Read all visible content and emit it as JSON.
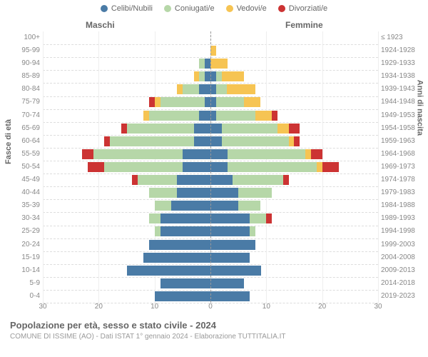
{
  "chart": {
    "type": "population-pyramid",
    "title": "Popolazione per età, sesso e stato civile - 2024",
    "subtitle": "COMUNE DI ISSIME (AO) - Dati ISTAT 1° gennaio 2024 - Elaborazione TUTTITALIA.IT",
    "header_male": "Maschi",
    "header_female": "Femmine",
    "axis_left_title": "Fasce di età",
    "axis_right_title": "Anni di nascita",
    "xlim": 30,
    "x_ticks": [
      30,
      20,
      10,
      0,
      10,
      20,
      30
    ],
    "legend": [
      {
        "label": "Celibi/Nubili",
        "color": "#4a7ba6"
      },
      {
        "label": "Coniugati/e",
        "color": "#b6d7a8"
      },
      {
        "label": "Vedovi/e",
        "color": "#f6c453"
      },
      {
        "label": "Divorziati/e",
        "color": "#cc3333"
      }
    ],
    "colors": {
      "single": "#4a7ba6",
      "married": "#b6d7a8",
      "widowed": "#f6c453",
      "divorced": "#cc3333",
      "grid": "#dddddd",
      "background": "#ffffff",
      "text": "#666666"
    },
    "rows": [
      {
        "age": "100+",
        "birth": "≤ 1923",
        "m": {
          "s": 0,
          "m": 0,
          "w": 0,
          "d": 0
        },
        "f": {
          "s": 0,
          "m": 0,
          "w": 0,
          "d": 0
        }
      },
      {
        "age": "95-99",
        "birth": "1924-1928",
        "m": {
          "s": 0,
          "m": 0,
          "w": 0,
          "d": 0
        },
        "f": {
          "s": 0,
          "m": 0,
          "w": 1,
          "d": 0
        }
      },
      {
        "age": "90-94",
        "birth": "1929-1933",
        "m": {
          "s": 1,
          "m": 1,
          "w": 0,
          "d": 0
        },
        "f": {
          "s": 0,
          "m": 0,
          "w": 3,
          "d": 0
        }
      },
      {
        "age": "85-89",
        "birth": "1934-1938",
        "m": {
          "s": 1,
          "m": 1,
          "w": 1,
          "d": 0
        },
        "f": {
          "s": 1,
          "m": 1,
          "w": 4,
          "d": 0
        }
      },
      {
        "age": "80-84",
        "birth": "1939-1943",
        "m": {
          "s": 2,
          "m": 3,
          "w": 1,
          "d": 0
        },
        "f": {
          "s": 1,
          "m": 2,
          "w": 5,
          "d": 0
        }
      },
      {
        "age": "75-79",
        "birth": "1944-1948",
        "m": {
          "s": 1,
          "m": 8,
          "w": 1,
          "d": 1
        },
        "f": {
          "s": 1,
          "m": 5,
          "w": 3,
          "d": 0
        }
      },
      {
        "age": "70-74",
        "birth": "1949-1953",
        "m": {
          "s": 2,
          "m": 9,
          "w": 1,
          "d": 0
        },
        "f": {
          "s": 1,
          "m": 7,
          "w": 3,
          "d": 1
        }
      },
      {
        "age": "65-69",
        "birth": "1954-1958",
        "m": {
          "s": 3,
          "m": 12,
          "w": 0,
          "d": 1
        },
        "f": {
          "s": 2,
          "m": 10,
          "w": 2,
          "d": 2
        }
      },
      {
        "age": "60-64",
        "birth": "1959-1963",
        "m": {
          "s": 3,
          "m": 15,
          "w": 0,
          "d": 1
        },
        "f": {
          "s": 2,
          "m": 12,
          "w": 1,
          "d": 1
        }
      },
      {
        "age": "55-59",
        "birth": "1964-1968",
        "m": {
          "s": 5,
          "m": 16,
          "w": 0,
          "d": 2
        },
        "f": {
          "s": 3,
          "m": 14,
          "w": 1,
          "d": 2
        }
      },
      {
        "age": "50-54",
        "birth": "1969-1973",
        "m": {
          "s": 5,
          "m": 14,
          "w": 0,
          "d": 3
        },
        "f": {
          "s": 3,
          "m": 16,
          "w": 1,
          "d": 3
        }
      },
      {
        "age": "45-49",
        "birth": "1974-1978",
        "m": {
          "s": 6,
          "m": 7,
          "w": 0,
          "d": 1
        },
        "f": {
          "s": 4,
          "m": 9,
          "w": 0,
          "d": 1
        }
      },
      {
        "age": "40-44",
        "birth": "1979-1983",
        "m": {
          "s": 6,
          "m": 5,
          "w": 0,
          "d": 0
        },
        "f": {
          "s": 5,
          "m": 6,
          "w": 0,
          "d": 0
        }
      },
      {
        "age": "35-39",
        "birth": "1984-1988",
        "m": {
          "s": 7,
          "m": 3,
          "w": 0,
          "d": 0
        },
        "f": {
          "s": 5,
          "m": 4,
          "w": 0,
          "d": 0
        }
      },
      {
        "age": "30-34",
        "birth": "1989-1993",
        "m": {
          "s": 9,
          "m": 2,
          "w": 0,
          "d": 0
        },
        "f": {
          "s": 7,
          "m": 3,
          "w": 0,
          "d": 1
        }
      },
      {
        "age": "25-29",
        "birth": "1994-1998",
        "m": {
          "s": 9,
          "m": 1,
          "w": 0,
          "d": 0
        },
        "f": {
          "s": 7,
          "m": 1,
          "w": 0,
          "d": 0
        }
      },
      {
        "age": "20-24",
        "birth": "1999-2003",
        "m": {
          "s": 11,
          "m": 0,
          "w": 0,
          "d": 0
        },
        "f": {
          "s": 8,
          "m": 0,
          "w": 0,
          "d": 0
        }
      },
      {
        "age": "15-19",
        "birth": "2004-2008",
        "m": {
          "s": 12,
          "m": 0,
          "w": 0,
          "d": 0
        },
        "f": {
          "s": 7,
          "m": 0,
          "w": 0,
          "d": 0
        }
      },
      {
        "age": "10-14",
        "birth": "2009-2013",
        "m": {
          "s": 15,
          "m": 0,
          "w": 0,
          "d": 0
        },
        "f": {
          "s": 9,
          "m": 0,
          "w": 0,
          "d": 0
        }
      },
      {
        "age": "5-9",
        "birth": "2014-2018",
        "m": {
          "s": 9,
          "m": 0,
          "w": 0,
          "d": 0
        },
        "f": {
          "s": 6,
          "m": 0,
          "w": 0,
          "d": 0
        }
      },
      {
        "age": "0-4",
        "birth": "2019-2023",
        "m": {
          "s": 10,
          "m": 0,
          "w": 0,
          "d": 0
        },
        "f": {
          "s": 7,
          "m": 0,
          "w": 0,
          "d": 0
        }
      }
    ]
  }
}
